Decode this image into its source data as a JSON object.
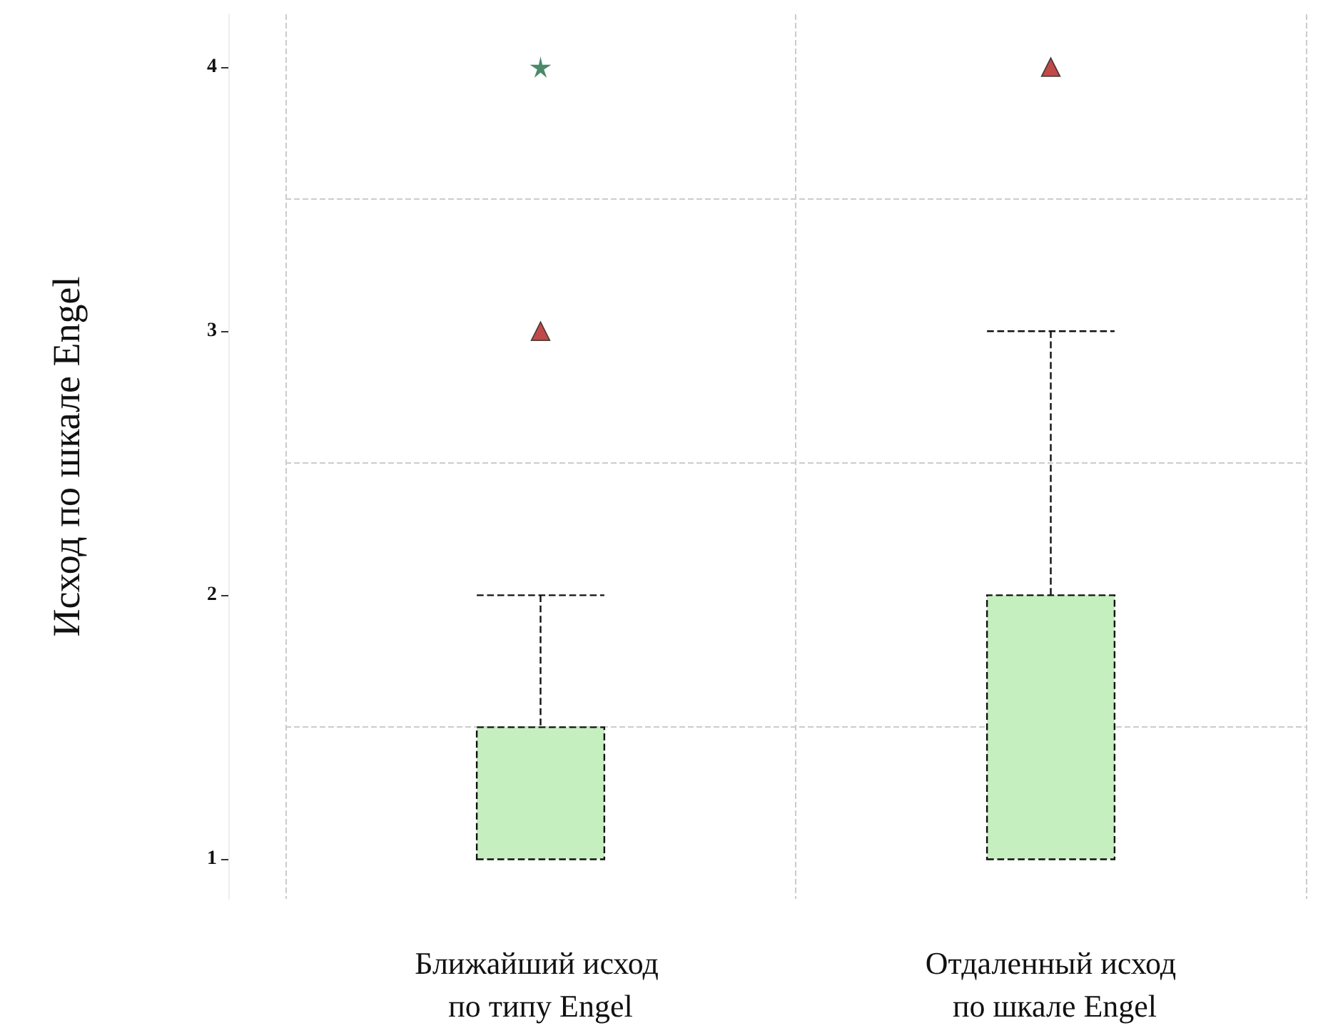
{
  "chart_data": {
    "type": "box",
    "ylabel": "Исход по шкале Engel",
    "categories": [
      "Ближайший исход по типу Engel",
      "Отдаленный исход по шкале Engel"
    ],
    "ylim": [
      0.85,
      4.2
    ],
    "yticks": [
      1,
      2,
      3,
      4
    ],
    "grid": true,
    "series": [
      {
        "color": "#c6efc0",
        "boxes": [
          {
            "low": 1,
            "q1": 1,
            "median": 1,
            "q3": 1.5,
            "high": 2
          },
          {
            "low": 1,
            "q1": 1,
            "median": 1,
            "q3": 2,
            "high": 3
          }
        ]
      },
      {
        "type": "scatter",
        "x": [
          "Ближайший исход по типу Engel",
          "Отдаленный исход по шкале Engel"
        ],
        "values": [
          3,
          4
        ],
        "marker": "triangle",
        "color": "#b01c1c"
      },
      {
        "type": "scatter",
        "x": [
          "Ближайший исход по типу Engel"
        ],
        "values": [
          4
        ],
        "marker": "star",
        "color": "#1d6b45"
      }
    ]
  }
}
